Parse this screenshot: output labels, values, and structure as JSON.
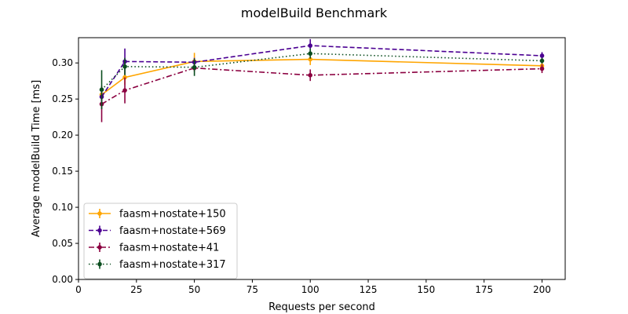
{
  "chart_data": {
    "type": "line",
    "title": "modelBuild Benchmark",
    "xlabel": "Requests per second",
    "ylabel": "Average modelBuild Time [ms]",
    "xlim": [
      0,
      210
    ],
    "ylim": [
      0,
      0.335
    ],
    "xticks": [
      0,
      25,
      50,
      75,
      100,
      125,
      150,
      175,
      200
    ],
    "xtick_labels": [
      "0",
      "25",
      "50",
      "75",
      "100",
      "125",
      "150",
      "175",
      "200"
    ],
    "yticks": [
      0.0,
      0.05,
      0.1,
      0.15,
      0.2,
      0.25,
      0.3
    ],
    "ytick_labels": [
      "0.00",
      "0.05",
      "0.10",
      "0.15",
      "0.20",
      "0.25",
      "0.30"
    ],
    "grid": false,
    "legend_position": "bottom-left",
    "x": [
      10,
      20,
      50,
      100,
      200
    ],
    "series": [
      {
        "name": "faasm+nostate+150",
        "color": "#ffa500",
        "dash": "solid",
        "values": [
          0.256,
          0.28,
          0.302,
          0.305,
          0.296
        ],
        "errors": [
          0.007,
          0.01,
          0.012,
          0.008,
          0.005
        ]
      },
      {
        "name": "faasm+nostate+569",
        "color": "#4b0092",
        "dash": "dashed",
        "values": [
          0.253,
          0.302,
          0.301,
          0.324,
          0.31
        ],
        "errors": [
          0.008,
          0.018,
          0.006,
          0.009,
          0.005
        ]
      },
      {
        "name": "faasm+nostate+41",
        "color": "#8b0040",
        "dash": "dashdot",
        "values": [
          0.243,
          0.262,
          0.293,
          0.283,
          0.292
        ],
        "errors": [
          0.025,
          0.018,
          0.005,
          0.008,
          0.006
        ]
      },
      {
        "name": "faasm+nostate+317",
        "color": "#0a4d1e",
        "dash": "dotted",
        "values": [
          0.263,
          0.295,
          0.294,
          0.313,
          0.303
        ],
        "errors": [
          0.027,
          0.012,
          0.012,
          0.007,
          0.004
        ]
      }
    ]
  }
}
